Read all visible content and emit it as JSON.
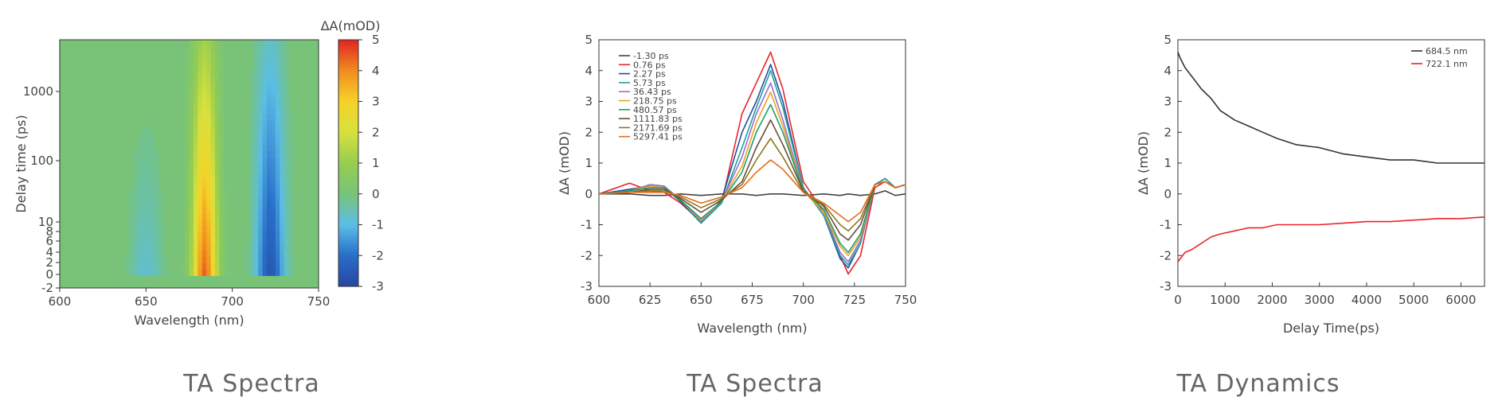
{
  "panels": [
    {
      "caption": "TA Spectra"
    },
    {
      "caption": "TA Spectra"
    },
    {
      "caption": "TA Dynamics"
    }
  ],
  "chart_data": [
    {
      "type": "heatmap",
      "title": "",
      "xlabel": "Wavelength (nm)",
      "ylabel": "Delay time (ps)",
      "colorbar_label": "ΔA(mOD)",
      "xlim": [
        600,
        750
      ],
      "x_ticks": [
        600,
        650,
        700,
        750
      ],
      "y_ticks": [
        "-2",
        "0",
        "2",
        "4",
        "6",
        "8",
        "10",
        "100",
        "1000"
      ],
      "colorbar_ticks": [
        5,
        4,
        3,
        2,
        1,
        0,
        -1,
        -2,
        -3
      ],
      "zlim": [
        -3,
        5
      ],
      "features": [
        {
          "kind": "bleach",
          "center_nm": 684,
          "max": 4.6
        },
        {
          "kind": "absorption",
          "center_nm": 722,
          "min": -2.7
        },
        {
          "kind": "absorption",
          "center_nm": 650,
          "min": -0.9
        }
      ],
      "background_value": 0
    },
    {
      "type": "line",
      "title": "",
      "xlabel": "Wavelength (nm)",
      "ylabel": "ΔA (mOD)",
      "xlim": [
        600,
        750
      ],
      "ylim": [
        -3,
        5
      ],
      "x_ticks": [
        600,
        625,
        650,
        675,
        700,
        725,
        750
      ],
      "y_ticks": [
        -3,
        -2,
        -1,
        0,
        1,
        2,
        3,
        4,
        5
      ],
      "x": [
        600,
        615,
        625,
        632,
        640,
        650,
        660,
        670,
        677,
        684,
        690,
        700,
        710,
        718,
        722,
        728,
        735,
        740,
        745,
        750
      ],
      "series": [
        {
          "name": "-1.30 ps",
          "color": "#444444",
          "values": [
            0.0,
            0.0,
            -0.05,
            -0.05,
            0.0,
            -0.05,
            0.0,
            0.0,
            -0.05,
            0.0,
            0.0,
            -0.05,
            0.0,
            -0.05,
            0.0,
            -0.05,
            0.0,
            0.1,
            -0.05,
            0.0
          ]
        },
        {
          "name": "0.76 ps",
          "color": "#e8252a",
          "values": [
            0.0,
            0.35,
            0.1,
            0.05,
            -0.3,
            -0.9,
            -0.3,
            2.6,
            3.6,
            4.6,
            3.4,
            0.4,
            -0.6,
            -2.0,
            -2.6,
            -2.0,
            0.2,
            0.4,
            0.2,
            0.3
          ]
        },
        {
          "name": "2.27 ps",
          "color": "#1f4fa0",
          "values": [
            0.0,
            0.15,
            0.25,
            0.2,
            -0.25,
            -0.95,
            -0.2,
            2.0,
            3.0,
            4.2,
            3.0,
            0.2,
            -0.7,
            -2.1,
            -2.4,
            -1.6,
            0.3,
            0.5,
            0.2,
            0.3
          ]
        },
        {
          "name": "5.73 ps",
          "color": "#20a0a0",
          "values": [
            0.0,
            0.1,
            0.3,
            0.25,
            -0.2,
            -0.95,
            -0.3,
            1.5,
            2.8,
            4.0,
            2.8,
            0.2,
            -0.7,
            -2.0,
            -2.3,
            -1.6,
            0.3,
            0.5,
            0.2,
            0.3
          ]
        },
        {
          "name": "36.43 ps",
          "color": "#9a6fc7",
          "values": [
            0.0,
            0.1,
            0.3,
            0.25,
            -0.2,
            -0.9,
            -0.25,
            1.2,
            2.6,
            3.6,
            2.4,
            0.1,
            -0.6,
            -1.9,
            -2.2,
            -1.5,
            0.3,
            0.4,
            0.2,
            0.3
          ]
        },
        {
          "name": "218.75 ps",
          "color": "#f0a020",
          "values": [
            0.0,
            0.1,
            0.25,
            0.2,
            -0.2,
            -0.85,
            -0.25,
            0.9,
            2.3,
            3.3,
            2.2,
            0.1,
            -0.6,
            -1.7,
            -2.0,
            -1.4,
            0.3,
            0.4,
            0.2,
            0.3
          ]
        },
        {
          "name": "480.57 ps",
          "color": "#1a9e6e",
          "values": [
            0.0,
            0.1,
            0.2,
            0.2,
            -0.2,
            -0.8,
            -0.25,
            0.7,
            2.0,
            2.9,
            2.0,
            0.1,
            -0.5,
            -1.6,
            -1.9,
            -1.3,
            0.3,
            0.4,
            0.2,
            0.3
          ]
        },
        {
          "name": "1111.83 ps",
          "color": "#6b4a3a",
          "values": [
            0.0,
            0.05,
            0.15,
            0.15,
            -0.15,
            -0.6,
            -0.2,
            0.4,
            1.5,
            2.4,
            1.6,
            0.1,
            -0.4,
            -1.3,
            -1.5,
            -1.0,
            0.3,
            0.4,
            0.2,
            0.3
          ]
        },
        {
          "name": "2171.69 ps",
          "color": "#8a7a20",
          "values": [
            0.0,
            0.05,
            0.1,
            0.1,
            -0.1,
            -0.45,
            -0.15,
            0.3,
            1.1,
            1.8,
            1.2,
            0.05,
            -0.35,
            -1.0,
            -1.2,
            -0.8,
            0.3,
            0.4,
            0.2,
            0.3
          ]
        },
        {
          "name": "5297.41 ps",
          "color": "#e86a1a",
          "values": [
            0.0,
            0.05,
            0.05,
            0.05,
            -0.05,
            -0.3,
            -0.1,
            0.2,
            0.7,
            1.1,
            0.8,
            0.05,
            -0.3,
            -0.7,
            -0.9,
            -0.6,
            0.3,
            0.4,
            0.2,
            0.3
          ]
        }
      ],
      "legend": "top-left"
    },
    {
      "type": "line",
      "title": "",
      "xlabel": "Delay Time(ps)",
      "ylabel": "ΔA (mOD)",
      "xlim": [
        0,
        6500
      ],
      "ylim": [
        -3,
        5
      ],
      "x_ticks": [
        0,
        1000,
        2000,
        3000,
        4000,
        5000,
        6000
      ],
      "y_ticks": [
        -3,
        -2,
        -1,
        0,
        1,
        2,
        3,
        4,
        5
      ],
      "x": [
        0,
        50,
        150,
        300,
        500,
        700,
        900,
        1200,
        1500,
        1800,
        2100,
        2500,
        3000,
        3500,
        4000,
        4500,
        5000,
        5500,
        6000,
        6500
      ],
      "series": [
        {
          "name": "684.5 nm",
          "color": "#333333",
          "values": [
            4.6,
            4.4,
            4.1,
            3.8,
            3.4,
            3.1,
            2.7,
            2.4,
            2.2,
            2.0,
            1.8,
            1.6,
            1.5,
            1.3,
            1.2,
            1.1,
            1.1,
            1.0,
            1.0,
            1.0
          ]
        },
        {
          "name": "722.1 nm",
          "color": "#e8252a",
          "values": [
            -2.2,
            -2.1,
            -1.9,
            -1.8,
            -1.6,
            -1.4,
            -1.3,
            -1.2,
            -1.1,
            -1.1,
            -1.0,
            -1.0,
            -1.0,
            -0.95,
            -0.9,
            -0.9,
            -0.85,
            -0.8,
            -0.8,
            -0.75
          ]
        }
      ],
      "legend": "top-right"
    }
  ]
}
